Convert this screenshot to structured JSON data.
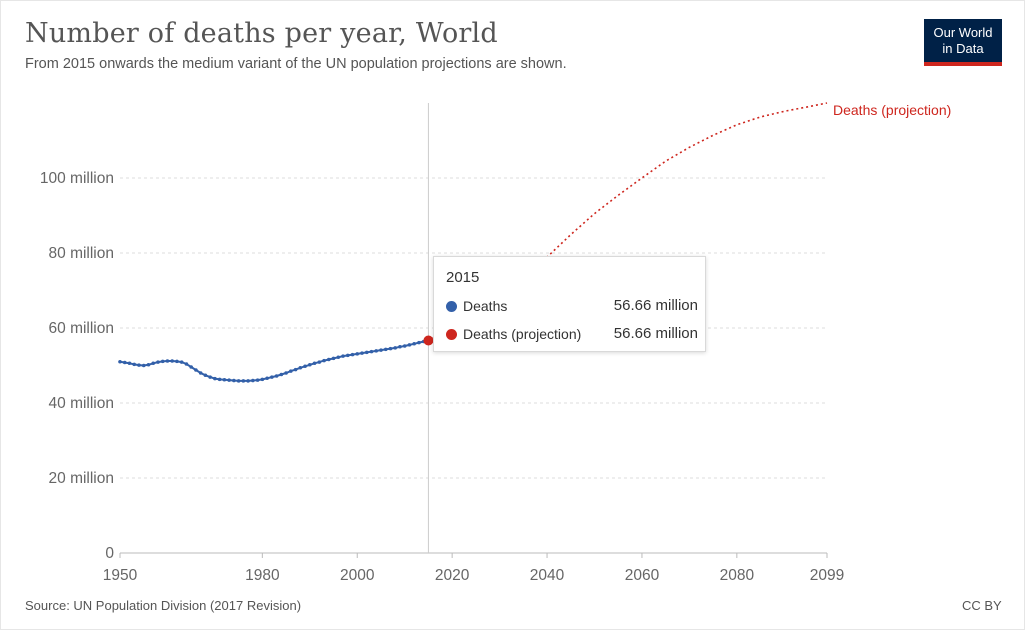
{
  "header": {
    "title": "Number of deaths per year, World",
    "subtitle": "From 2015 onwards the medium variant of the UN population projections are shown.",
    "logo_line1": "Our World",
    "logo_line2": "in Data"
  },
  "footer": {
    "source": "Source: UN Population Division (2017 Revision)",
    "license": "CC BY"
  },
  "colors": {
    "deaths": "#3360a9",
    "projection": "#ce261e",
    "logo_bg": "#002147"
  },
  "tooltip": {
    "year": "2015",
    "rows": [
      {
        "label": "Deaths",
        "value": "56.66 million"
      },
      {
        "label": "Deaths (projection)",
        "value": "56.66 million"
      }
    ]
  },
  "chart_data": {
    "type": "line",
    "title": "Number of deaths per year, World",
    "subtitle": "From 2015 onwards the medium variant of the UN population projections are shown.",
    "xlabel": "",
    "ylabel": "",
    "xlim": [
      1950,
      2099
    ],
    "ylim": [
      0,
      120000000
    ],
    "x_ticks": [
      "1950",
      "1980",
      "2000",
      "2020",
      "2040",
      "2060",
      "2080",
      "2099"
    ],
    "x_tick_values": [
      1950,
      1980,
      2000,
      2020,
      2040,
      2060,
      2080,
      2099
    ],
    "y_ticks": [
      "0",
      "20 million",
      "40 million",
      "60 million",
      "80 million",
      "100 million"
    ],
    "y_tick_values": [
      0,
      20000000,
      40000000,
      60000000,
      80000000,
      100000000
    ],
    "grid": true,
    "highlight_year": 2015,
    "series": [
      {
        "name": "Deaths",
        "style": "solid",
        "x": [
          1950,
          1951,
          1952,
          1953,
          1954,
          1955,
          1956,
          1957,
          1958,
          1959,
          1960,
          1961,
          1962,
          1963,
          1964,
          1965,
          1966,
          1967,
          1968,
          1969,
          1970,
          1971,
          1972,
          1973,
          1974,
          1975,
          1976,
          1977,
          1978,
          1979,
          1980,
          1981,
          1982,
          1983,
          1984,
          1985,
          1986,
          1987,
          1988,
          1989,
          1990,
          1991,
          1992,
          1993,
          1994,
          1995,
          1996,
          1997,
          1998,
          1999,
          2000,
          2001,
          2002,
          2003,
          2004,
          2005,
          2006,
          2007,
          2008,
          2009,
          2010,
          2011,
          2012,
          2013,
          2014,
          2015
        ],
        "y": [
          51.0,
          50.8,
          50.6,
          50.3,
          50.1,
          50.0,
          50.2,
          50.6,
          50.9,
          51.1,
          51.2,
          51.2,
          51.1,
          50.9,
          50.4,
          49.6,
          48.8,
          48.0,
          47.4,
          46.9,
          46.5,
          46.3,
          46.2,
          46.1,
          46.0,
          45.9,
          45.9,
          45.9,
          46.0,
          46.1,
          46.3,
          46.6,
          46.9,
          47.2,
          47.6,
          48.0,
          48.5,
          48.9,
          49.4,
          49.8,
          50.2,
          50.6,
          50.9,
          51.3,
          51.6,
          51.9,
          52.2,
          52.5,
          52.7,
          52.9,
          53.1,
          53.3,
          53.5,
          53.7,
          53.9,
          54.1,
          54.3,
          54.5,
          54.7,
          55.0,
          55.2,
          55.5,
          55.8,
          56.1,
          56.4,
          56.66
        ]
      },
      {
        "name": "Deaths (projection)",
        "style": "dotted",
        "x": [
          2015,
          2020,
          2025,
          2030,
          2035,
          2040,
          2045,
          2050,
          2055,
          2060,
          2065,
          2070,
          2075,
          2080,
          2085,
          2090,
          2095,
          2099
        ],
        "y": [
          56.66,
          60.0,
          63.8,
          68.2,
          73.3,
          78.9,
          84.9,
          90.5,
          95.4,
          100.0,
          104.5,
          108.2,
          111.4,
          114.2,
          116.3,
          117.8,
          119.0,
          120.0
        ]
      }
    ],
    "y_value_unit": "million"
  }
}
